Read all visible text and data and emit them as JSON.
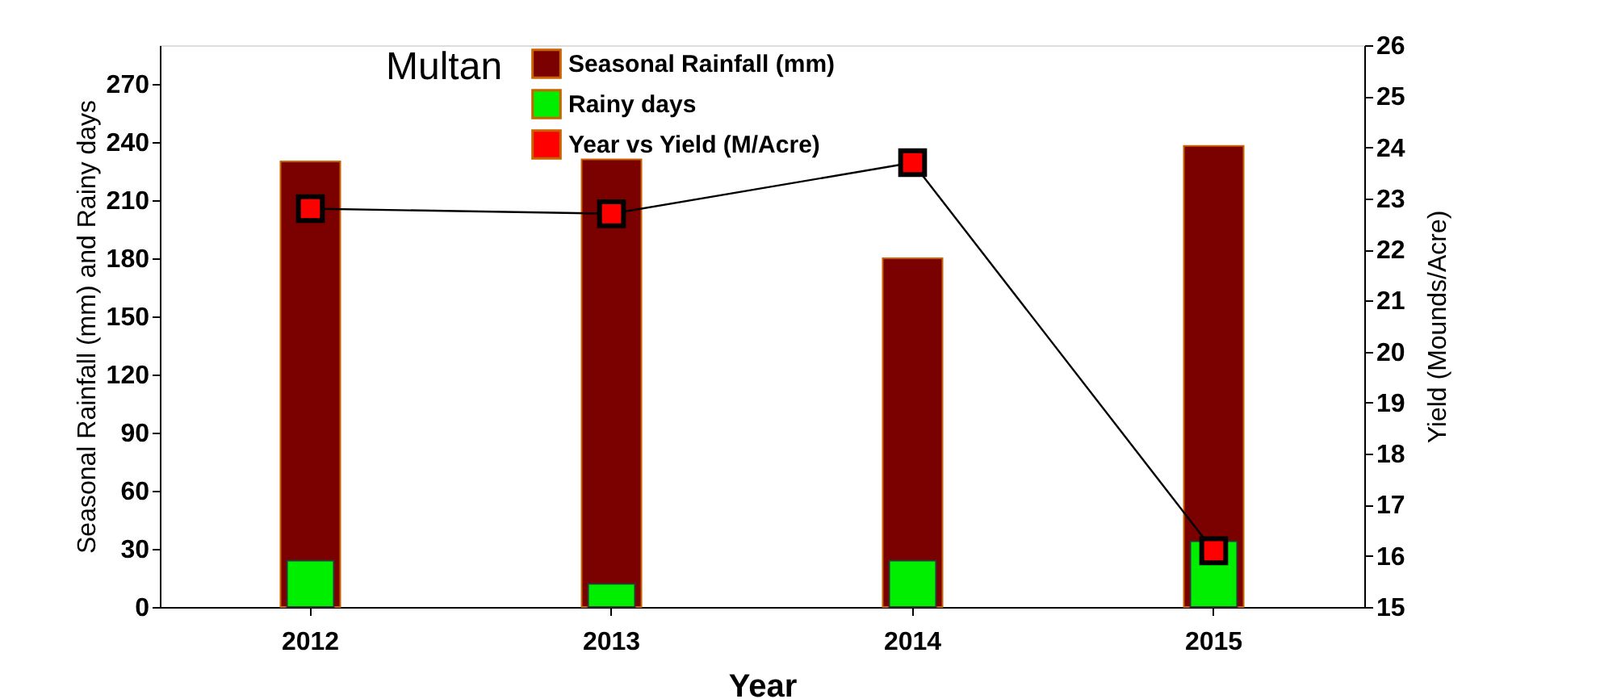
{
  "chart_data": {
    "type": "bar",
    "title": "Multan",
    "xlabel": "Year",
    "ylabel": "Seasonal Rainfall (mm) and Rainy days",
    "y2label": "Yield (Mounds/Acre)",
    "categories": [
      "2012",
      "2013",
      "2014",
      "2015"
    ],
    "series": [
      {
        "name": "Seasonal Rainfall (mm)",
        "color": "#7b0000",
        "values": [
          230,
          231,
          180,
          238
        ]
      },
      {
        "name": "Rainy days",
        "color": "#00ee00",
        "values": [
          24,
          12,
          24,
          34
        ]
      },
      {
        "name": "Year vs Yield (M/Acre)",
        "color": "#ff0000",
        "type": "line",
        "axis": "y2",
        "values": [
          22.8,
          22.7,
          23.7,
          16.1
        ]
      }
    ],
    "ylim": [
      0,
      290
    ],
    "yticks": [
      0,
      30,
      60,
      90,
      120,
      150,
      180,
      210,
      240,
      270
    ],
    "y2lim": [
      15,
      26
    ],
    "y2ticks": [
      15,
      16,
      17,
      18,
      19,
      20,
      21,
      22,
      23,
      24,
      25,
      26
    ],
    "grid": false,
    "legend": "top",
    "marker": "square",
    "line_style": "solid"
  }
}
